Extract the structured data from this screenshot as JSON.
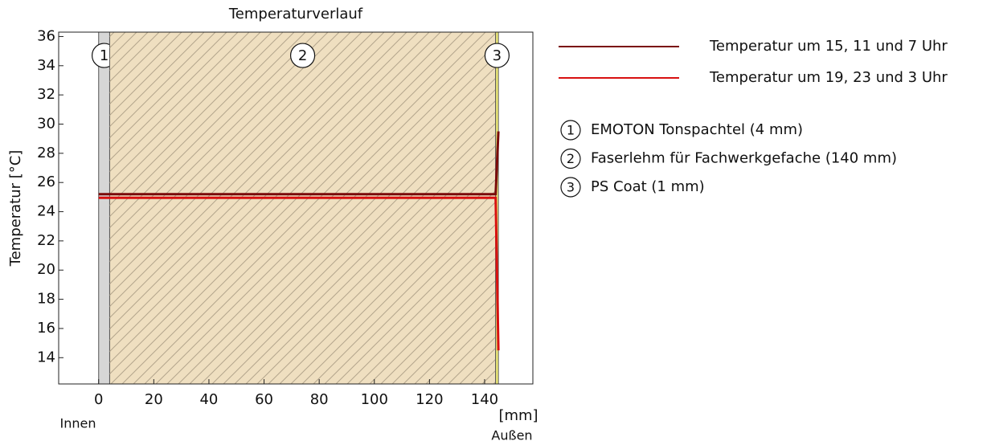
{
  "chart_data": {
    "type": "line",
    "title": "Temperaturverlauf",
    "y_label": "Temperatur [°C]",
    "x_unit": "[mm]",
    "x_left_label": "Innen",
    "x_right_label": "Außen",
    "xlim": [
      -14.5,
      157.5
    ],
    "ylim": [
      12.2,
      36.3
    ],
    "xticks": [
      0,
      20,
      40,
      60,
      80,
      100,
      120,
      140
    ],
    "yticks": [
      14,
      16,
      18,
      20,
      22,
      24,
      26,
      28,
      30,
      32,
      34,
      36
    ],
    "x": [
      0,
      144,
      145
    ],
    "series": [
      {
        "name": "Temperatur um 15, 11 und 7 Uhr",
        "color": "#7a0a0a",
        "values": [
          25.2,
          25.2,
          29.5
        ]
      },
      {
        "name": "Temperatur um 19, 23 und 3 Uhr",
        "color": "#d81010",
        "values": [
          24.95,
          24.95,
          14.5
        ]
      }
    ],
    "layers": [
      {
        "label": "1",
        "name": "EMOTON Tonspachtel (4 mm)",
        "start": 0,
        "end": 4,
        "color": "#d6d6d6"
      },
      {
        "label": "2",
        "name": "Faserlehm für Fachwerkgefache (140 mm)",
        "start": 4,
        "end": 144,
        "color": "#efdfc0"
      },
      {
        "label": "3",
        "name": "PS Coat (1 mm)",
        "start": 144,
        "end": 145,
        "color": "#f4f07a"
      }
    ]
  }
}
